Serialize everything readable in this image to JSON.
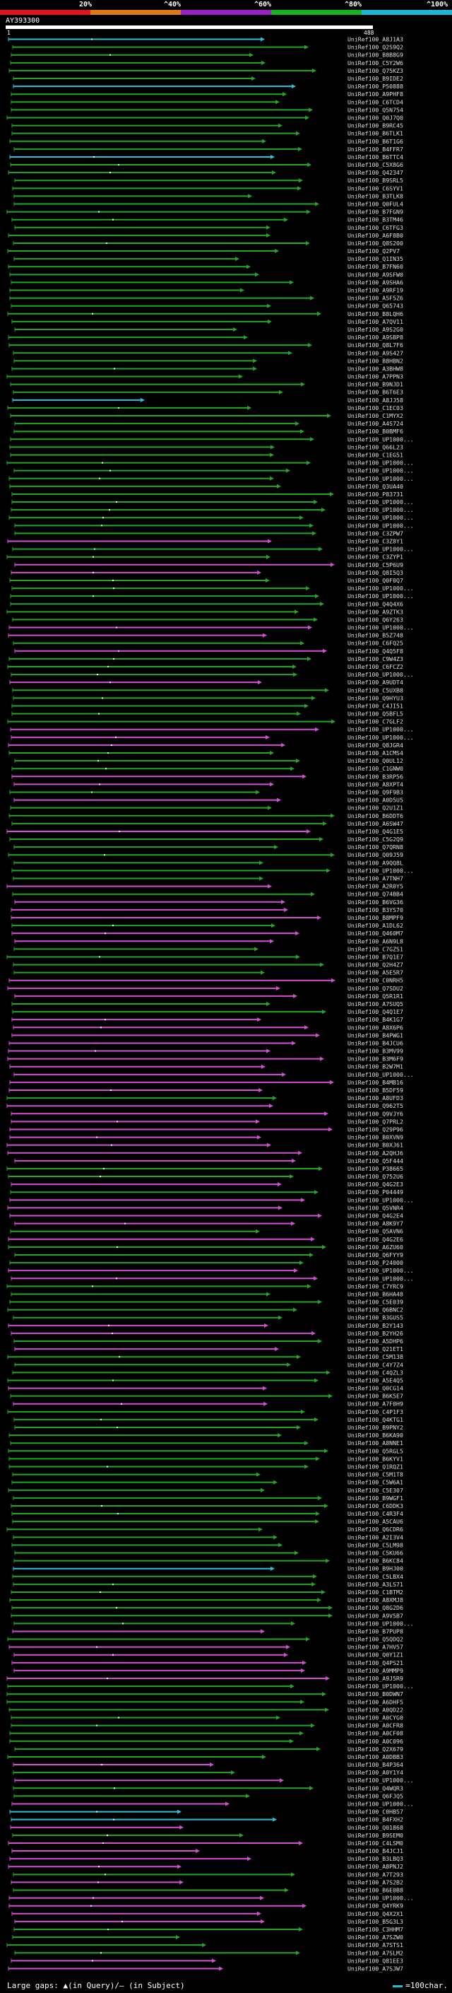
{
  "scale": {
    "labels": [
      "20%",
      "^40%",
      "^60%",
      "^80%",
      "^100%"
    ],
    "colors": [
      "#e0141a",
      "#e07a14",
      "#9b21c4",
      "#17b41d",
      "#1ab7d9"
    ]
  },
  "query": {
    "name": "AY393300",
    "start": "1",
    "end": "488"
  },
  "legend": {
    "text": "Large gaps: ▲(in Query)/– (in Subject)",
    "scale_text": "=100char."
  },
  "hits": [
    {
      "id": "UniRef100_A8J1A3",
      "color": "#2cc0d8"
    },
    {
      "id": "UniRef100_Q2S9Q2",
      "color": "#25a525"
    },
    {
      "id": "UniRef100_B8B8G9",
      "color": "#25a525"
    },
    {
      "id": "UniRef100_C5Y2W6",
      "color": "#25a525"
    },
    {
      "id": "UniRef100_Q75KZ3",
      "color": "#25a525"
    },
    {
      "id": "UniRef100_B9IDE2",
      "color": "#25a525"
    },
    {
      "id": "UniRef100_P50888",
      "color": "#2cc0d8"
    },
    {
      "id": "UniRef100_A9PHF8",
      "color": "#25a525"
    },
    {
      "id": "UniRef100_C6TCD4",
      "color": "#25a525"
    },
    {
      "id": "UniRef100_Q5N754",
      "color": "#25a525"
    },
    {
      "id": "UniRef100_Q0J7Q0",
      "color": "#25a525"
    },
    {
      "id": "UniRef100_B9RC45",
      "color": "#25a525"
    },
    {
      "id": "UniRef100_B6TLK1",
      "color": "#25a525"
    },
    {
      "id": "UniRef100_B6T1G6",
      "color": "#25a525"
    },
    {
      "id": "UniRef100_B4FFR7",
      "color": "#25a525"
    },
    {
      "id": "UniRef100_B6TTC4",
      "color": "#2cc0d8"
    },
    {
      "id": "UniRef100_C5X8G6",
      "color": "#25a525"
    },
    {
      "id": "UniRef100_Q42347",
      "color": "#25a525"
    },
    {
      "id": "UniRef100_B9SRL5",
      "color": "#25a525"
    },
    {
      "id": "UniRef100_C6SYV1",
      "color": "#25a525"
    },
    {
      "id": "UniRef100_B3TLK8",
      "color": "#25a525"
    },
    {
      "id": "UniRef100_Q0FUL4",
      "color": "#25a525"
    },
    {
      "id": "UniRef100_B7FGN9",
      "color": "#25a525"
    },
    {
      "id": "UniRef100_B3TM46",
      "color": "#25a525"
    },
    {
      "id": "UniRef100_C6TFG3",
      "color": "#25a525"
    },
    {
      "id": "UniRef100_A6F8B0",
      "color": "#25a525"
    },
    {
      "id": "UniRef100_Q8S200",
      "color": "#25a525"
    },
    {
      "id": "UniRef100_Q2PV7",
      "color": "#25a525"
    },
    {
      "id": "UniRef100_Q1IN35",
      "color": "#25a525"
    },
    {
      "id": "UniRef100_B7FN60",
      "color": "#25a525"
    },
    {
      "id": "UniRef100_A9SFW0",
      "color": "#25a525"
    },
    {
      "id": "UniRef100_A9SHA6",
      "color": "#25a525"
    },
    {
      "id": "UniRef100_A9RF19",
      "color": "#25a525"
    },
    {
      "id": "UniRef100_A5F5Z6",
      "color": "#25a525"
    },
    {
      "id": "UniRef100_Q65743",
      "color": "#25a525"
    },
    {
      "id": "UniRef100_B8LQH6",
      "color": "#25a525"
    },
    {
      "id": "UniRef100_A7QV11",
      "color": "#25a525"
    },
    {
      "id": "UniRef100_A9S2G0",
      "color": "#25a525"
    },
    {
      "id": "UniRef100_A9SBP8",
      "color": "#25a525"
    },
    {
      "id": "UniRef100_Q8L7F6",
      "color": "#25a525"
    },
    {
      "id": "UniRef100_A9S427",
      "color": "#25a525"
    },
    {
      "id": "UniRef100_B8HBN2",
      "color": "#25a525"
    },
    {
      "id": "UniRef100_A3BHW8",
      "color": "#25a525"
    },
    {
      "id": "UniRef100_A7PPN3",
      "color": "#25a525"
    },
    {
      "id": "UniRef100_B9NJD1",
      "color": "#25a525"
    },
    {
      "id": "UniRef100_B6T6E3",
      "color": "#25a525"
    },
    {
      "id": "UniRef100_A8JJ58",
      "color": "#2cc0d8"
    },
    {
      "id": "UniRef100_C1EC03",
      "color": "#25a525"
    },
    {
      "id": "UniRef100_C1MYX2",
      "color": "#25a525"
    },
    {
      "id": "UniRef100_A4S724",
      "color": "#25a525"
    },
    {
      "id": "UniRef100_B0BMF6",
      "color": "#25a525"
    },
    {
      "id": "UniRef100_UP1000...",
      "color": "#25a525"
    },
    {
      "id": "UniRef100_Q66L23",
      "color": "#25a525"
    },
    {
      "id": "UniRef100_C1EG51",
      "color": "#25a525"
    },
    {
      "id": "UniRef100_UP1000...",
      "color": "#25a525"
    },
    {
      "id": "UniRef100_UP1000...",
      "color": "#25a525"
    },
    {
      "id": "UniRef100_UP1000...",
      "color": "#25a525"
    },
    {
      "id": "UniRef100_Q3UA40",
      "color": "#25a525"
    },
    {
      "id": "UniRef100_P83731",
      "color": "#25a525"
    },
    {
      "id": "UniRef100_UP1000...",
      "color": "#25a525"
    },
    {
      "id": "UniRef100_UP1000...",
      "color": "#25a525"
    },
    {
      "id": "UniRef100_UP1000...",
      "color": "#25a525"
    },
    {
      "id": "UniRef100_UP1000...",
      "color": "#25a525"
    },
    {
      "id": "UniRef100_C3ZPW7",
      "color": "#25a525"
    },
    {
      "id": "UniRef100_C3Z8Y1",
      "color": "#d24fd2"
    },
    {
      "id": "UniRef100_UP1000...",
      "color": "#25a525"
    },
    {
      "id": "UniRef100_C3ZYP1",
      "color": "#25a525"
    },
    {
      "id": "UniRef100_C5P6U9",
      "color": "#d24fd2"
    },
    {
      "id": "UniRef100_Q8I5Q3",
      "color": "#d24fd2"
    },
    {
      "id": "UniRef100_Q0F0Q7",
      "color": "#25a525"
    },
    {
      "id": "UniRef100_UP1000...",
      "color": "#25a525"
    },
    {
      "id": "UniRef100_UP1000...",
      "color": "#25a525"
    },
    {
      "id": "UniRef100_Q4Q4X6",
      "color": "#25a525"
    },
    {
      "id": "UniRef100_A9ZTK3",
      "color": "#25a525"
    },
    {
      "id": "UniRef100_Q6Y263",
      "color": "#25a525"
    },
    {
      "id": "UniRef100_UP1000...",
      "color": "#d24fd2"
    },
    {
      "id": "UniRef100_B5Z748",
      "color": "#d24fd2"
    },
    {
      "id": "UniRef100_C6FQ25",
      "color": "#25a525"
    },
    {
      "id": "UniRef100_Q4Q5F8",
      "color": "#d24fd2"
    },
    {
      "id": "UniRef100_C9W4Z3",
      "color": "#25a525"
    },
    {
      "id": "UniRef100_C6FCZ2",
      "color": "#25a525"
    },
    {
      "id": "UniRef100_UP1000...",
      "color": "#25a525"
    },
    {
      "id": "UniRef100_A9UDT4",
      "color": "#d24fd2"
    },
    {
      "id": "UniRef100_C5UXB8",
      "color": "#25a525"
    },
    {
      "id": "UniRef100_Q9HYU3",
      "color": "#25a525"
    },
    {
      "id": "UniRef100_C4JI51",
      "color": "#25a525"
    },
    {
      "id": "UniRef100_Q5BFL5",
      "color": "#25a525"
    },
    {
      "id": "UniRef100_C7GLF2",
      "color": "#25a525"
    },
    {
      "id": "UniRef100_UP1000...",
      "color": "#d24fd2"
    },
    {
      "id": "UniRef100_UP1000...",
      "color": "#d24fd2"
    },
    {
      "id": "UniRef100_Q8JGR4",
      "color": "#d24fd2"
    },
    {
      "id": "UniRef100_A1CMS4",
      "color": "#25a525"
    },
    {
      "id": "UniRef100_Q0UL12",
      "color": "#25a525"
    },
    {
      "id": "UniRef100_C1GNW0",
      "color": "#25a525"
    },
    {
      "id": "UniRef100_B3RP56",
      "color": "#d24fd2"
    },
    {
      "id": "UniRef100_A8XPT4",
      "color": "#d24fd2"
    },
    {
      "id": "UniRef100_Q9F9B3",
      "color": "#25a525"
    },
    {
      "id": "UniRef100_A0D5U5",
      "color": "#d24fd2"
    },
    {
      "id": "UniRef100_Q2U1Z1",
      "color": "#25a525"
    },
    {
      "id": "UniRef100_B6DDT6",
      "color": "#25a525"
    },
    {
      "id": "UniRef100_A6SW47",
      "color": "#25a525"
    },
    {
      "id": "UniRef100_Q4G1E5",
      "color": "#d24fd2"
    },
    {
      "id": "UniRef100_C5G2Q9",
      "color": "#25a525"
    },
    {
      "id": "UniRef100_Q7QRN8",
      "color": "#25a525"
    },
    {
      "id": "UniRef100_Q09J59",
      "color": "#25a525"
    },
    {
      "id": "UniRef100_A9QQ8L",
      "color": "#25a525"
    },
    {
      "id": "UniRef100_UP1000...",
      "color": "#25a525"
    },
    {
      "id": "UniRef100_A7TNH7",
      "color": "#25a525"
    },
    {
      "id": "UniRef100_A2R0Y5",
      "color": "#d24fd2"
    },
    {
      "id": "UniRef100_Q74BB4",
      "color": "#25a525"
    },
    {
      "id": "UniRef100_B6VG36",
      "color": "#d24fd2"
    },
    {
      "id": "UniRef100_B3YS70",
      "color": "#d24fd2"
    },
    {
      "id": "UniRef100_B8MPF9",
      "color": "#d24fd2"
    },
    {
      "id": "UniRef100_A1DL62",
      "color": "#25a525"
    },
    {
      "id": "UniRef100_Q460M7",
      "color": "#d24fd2"
    },
    {
      "id": "UniRef100_A6N9L8",
      "color": "#d24fd2"
    },
    {
      "id": "UniRef100_C7GZS1",
      "color": "#25a525"
    },
    {
      "id": "UniRef100_B7Q1E7",
      "color": "#25a525"
    },
    {
      "id": "UniRef100_Q2H4Z7",
      "color": "#25a525"
    },
    {
      "id": "UniRef100_A5E5R7",
      "color": "#25a525"
    },
    {
      "id": "UniRef100_C0NRH5",
      "color": "#d24fd2"
    },
    {
      "id": "UniRef100_Q7SDU2",
      "color": "#d24fd2"
    },
    {
      "id": "UniRef100_Q5R1R1",
      "color": "#d24fd2"
    },
    {
      "id": "UniRef100_A7SUQ5",
      "color": "#25a525"
    },
    {
      "id": "UniRef100_Q4Q1E7",
      "color": "#25a525"
    },
    {
      "id": "UniRef100_B4K1G7",
      "color": "#d24fd2"
    },
    {
      "id": "UniRef100_A8X6P6",
      "color": "#d24fd2"
    },
    {
      "id": "UniRef100_B4PWG1",
      "color": "#d24fd2"
    },
    {
      "id": "UniRef100_B4JCU6",
      "color": "#d24fd2"
    },
    {
      "id": "UniRef100_B3MV99",
      "color": "#d24fd2"
    },
    {
      "id": "UniRef100_B3M6F9",
      "color": "#d24fd2"
    },
    {
      "id": "UniRef100_B2W7M1",
      "color": "#d24fd2"
    },
    {
      "id": "UniRef100_UP1000...",
      "color": "#d24fd2"
    },
    {
      "id": "UniRef100_B4MB16",
      "color": "#d24fd2"
    },
    {
      "id": "UniRef100_B5DF59",
      "color": "#d24fd2"
    },
    {
      "id": "UniRef100_A8UFD3",
      "color": "#25a525"
    },
    {
      "id": "UniRef100_Q962T5",
      "color": "#d24fd2"
    },
    {
      "id": "UniRef100_Q9VJY6",
      "color": "#d24fd2"
    },
    {
      "id": "UniRef100_Q7PRL2",
      "color": "#d24fd2"
    },
    {
      "id": "UniRef100_Q29P96",
      "color": "#d24fd2"
    },
    {
      "id": "UniRef100_B0XVN9",
      "color": "#d24fd2"
    },
    {
      "id": "UniRef100_B0XJ61",
      "color": "#d24fd2"
    },
    {
      "id": "UniRef100_A2QHJ6",
      "color": "#d24fd2"
    },
    {
      "id": "UniRef100_Q5F444",
      "color": "#d24fd2"
    },
    {
      "id": "UniRef100_P38665",
      "color": "#25a525"
    },
    {
      "id": "UniRef100_Q752U6",
      "color": "#25a525"
    },
    {
      "id": "UniRef100_Q4G2E3",
      "color": "#d24fd2"
    },
    {
      "id": "UniRef100_P04449",
      "color": "#25a525"
    },
    {
      "id": "UniRef100_UP1000...",
      "color": "#d24fd2"
    },
    {
      "id": "UniRef100_Q5VNR4",
      "color": "#d24fd2"
    },
    {
      "id": "UniRef100_Q4G2E4",
      "color": "#d24fd2"
    },
    {
      "id": "UniRef100_A8K9Y7",
      "color": "#d24fd2"
    },
    {
      "id": "UniRef100_Q5AVN6",
      "color": "#25a525"
    },
    {
      "id": "UniRef100_Q4G2E6",
      "color": "#d24fd2"
    },
    {
      "id": "UniRef100_A6ZU60",
      "color": "#25a525"
    },
    {
      "id": "UniRef100_Q6FYY9",
      "color": "#25a525"
    },
    {
      "id": "UniRef100_P24000",
      "color": "#25a525"
    },
    {
      "id": "UniRef100_UP1000...",
      "color": "#d24fd2"
    },
    {
      "id": "UniRef100_UP1000...",
      "color": "#d24fd2"
    },
    {
      "id": "UniRef100_C7YRC9",
      "color": "#25a525"
    },
    {
      "id": "UniRef100_B6HA48",
      "color": "#25a525"
    },
    {
      "id": "UniRef100_C5E039",
      "color": "#25a525"
    },
    {
      "id": "UniRef100_Q6BNC2",
      "color": "#25a525"
    },
    {
      "id": "UniRef100_B3GUS5",
      "color": "#25a525"
    },
    {
      "id": "UniRef100_B2Y143",
      "color": "#d24fd2"
    },
    {
      "id": "UniRef100_B2YH26",
      "color": "#d24fd2"
    },
    {
      "id": "UniRef100_A5DHP6",
      "color": "#25a525"
    },
    {
      "id": "UniRef100_Q21ET1",
      "color": "#d24fd2"
    },
    {
      "id": "UniRef100_C5M138",
      "color": "#25a525"
    },
    {
      "id": "UniRef100_C4Y7Z4",
      "color": "#25a525"
    },
    {
      "id": "UniRef100_C4QZL3",
      "color": "#25a525"
    },
    {
      "id": "UniRef100_A5E4Q5",
      "color": "#25a525"
    },
    {
      "id": "UniRef100_Q0CG14",
      "color": "#d24fd2"
    },
    {
      "id": "UniRef100_B6K5E7",
      "color": "#25a525"
    },
    {
      "id": "UniRef100_A7F0H9",
      "color": "#d24fd2"
    },
    {
      "id": "UniRef100_C4P1F3",
      "color": "#25a525"
    },
    {
      "id": "UniRef100_Q4KTG1",
      "color": "#25a525"
    },
    {
      "id": "UniRef100_B9PNY2",
      "color": "#25a525"
    },
    {
      "id": "UniRef100_B6KA90",
      "color": "#25a525"
    },
    {
      "id": "UniRef100_A8NNE1",
      "color": "#25a525"
    },
    {
      "id": "UniRef100_Q5RGL5",
      "color": "#25a525"
    },
    {
      "id": "UniRef100_B6KYV1",
      "color": "#25a525"
    },
    {
      "id": "UniRef100_Q1RQZ1",
      "color": "#25a525"
    },
    {
      "id": "UniRef100_C5M1T8",
      "color": "#25a525"
    },
    {
      "id": "UniRef100_C5W6A1",
      "color": "#25a525"
    },
    {
      "id": "UniRef100_C5E307",
      "color": "#25a525"
    },
    {
      "id": "UniRef100_B9WGF1",
      "color": "#25a525"
    },
    {
      "id": "UniRef100_C6DDK3",
      "color": "#25a525"
    },
    {
      "id": "UniRef100_C4R3F4",
      "color": "#25a525"
    },
    {
      "id": "UniRef100_A5CAU6",
      "color": "#25a525"
    },
    {
      "id": "UniRef100_Q6CDR6",
      "color": "#25a525"
    },
    {
      "id": "UniRef100_A2I3V4",
      "color": "#25a525"
    },
    {
      "id": "UniRef100_C5LM98",
      "color": "#25a525"
    },
    {
      "id": "UniRef100_C5KU66",
      "color": "#25a525"
    },
    {
      "id": "UniRef100_B6KC84",
      "color": "#25a525"
    },
    {
      "id": "UniRef100_B9HJ00",
      "color": "#2cc0d8"
    },
    {
      "id": "UniRef100_C5LBX4",
      "color": "#25a525"
    },
    {
      "id": "UniRef100_A3LS71",
      "color": "#25a525"
    },
    {
      "id": "UniRef100_C1BTM2",
      "color": "#25a525"
    },
    {
      "id": "UniRef100_A8XMJ8",
      "color": "#25a525"
    },
    {
      "id": "UniRef100_Q8G2D6",
      "color": "#25a525"
    },
    {
      "id": "UniRef100_A9V5B7",
      "color": "#25a525"
    },
    {
      "id": "UniRef100_UP1000...",
      "color": "#25a525"
    },
    {
      "id": "UniRef100_B7PUP8",
      "color": "#d24fd2"
    },
    {
      "id": "UniRef100_Q5QDQ2",
      "color": "#25a525"
    },
    {
      "id": "UniRef100_A7HV57",
      "color": "#d24fd2"
    },
    {
      "id": "UniRef100_Q0Y1Z1",
      "color": "#d24fd2"
    },
    {
      "id": "UniRef100_Q4PS21",
      "color": "#d24fd2"
    },
    {
      "id": "UniRef100_A9MMP9",
      "color": "#d24fd2"
    },
    {
      "id": "UniRef100_A9J5R9",
      "color": "#d24fd2"
    },
    {
      "id": "UniRef100_UP1000...",
      "color": "#25a525"
    },
    {
      "id": "UniRef100_B0DWN7",
      "color": "#25a525"
    },
    {
      "id": "UniRef100_A6DHF5",
      "color": "#25a525"
    },
    {
      "id": "UniRef100_A0QD22",
      "color": "#25a525"
    },
    {
      "id": "UniRef100_A0CYG0",
      "color": "#25a525"
    },
    {
      "id": "UniRef100_A0CFR8",
      "color": "#25a525"
    },
    {
      "id": "UniRef100_A0CF08",
      "color": "#25a525"
    },
    {
      "id": "UniRef100_A0C096",
      "color": "#25a525"
    },
    {
      "id": "UniRef100_Q2X679",
      "color": "#25a525"
    },
    {
      "id": "UniRef100_A0DBB3",
      "color": "#25a525"
    },
    {
      "id": "UniRef100_B4P364",
      "color": "#d24fd2"
    },
    {
      "id": "UniRef100_A0Y1Y4",
      "color": "#25a525"
    },
    {
      "id": "UniRef100_UP1000...",
      "color": "#d24fd2"
    },
    {
      "id": "UniRef100_Q4WQR3",
      "color": "#25a525"
    },
    {
      "id": "UniRef100_Q6FJQ5",
      "color": "#25a525"
    },
    {
      "id": "UniRef100_UP1000...",
      "color": "#d24fd2"
    },
    {
      "id": "UniRef100_C0HB57",
      "color": "#2cc0d8"
    },
    {
      "id": "UniRef100_B4FXH2",
      "color": "#2cc0d8"
    },
    {
      "id": "UniRef100_Q01868",
      "color": "#d24fd2"
    },
    {
      "id": "UniRef100_B9SEM0",
      "color": "#25a525"
    },
    {
      "id": "UniRef100_C4LSM0",
      "color": "#d24fd2"
    },
    {
      "id": "UniRef100_B4JCJ1",
      "color": "#d24fd2"
    },
    {
      "id": "UniRef100_B3LBQ3",
      "color": "#d24fd2"
    },
    {
      "id": "UniRef100_A8PNJ2",
      "color": "#d24fd2"
    },
    {
      "id": "UniRef100_A7T293",
      "color": "#25a525"
    },
    {
      "id": "UniRef100_A7S2B2",
      "color": "#d24fd2"
    },
    {
      "id": "UniRef100_B6E0B8",
      "color": "#25a525"
    },
    {
      "id": "UniRef100_UP1000...",
      "color": "#d24fd2"
    },
    {
      "id": "UniRef100_Q4YRK9",
      "color": "#d24fd2"
    },
    {
      "id": "UniRef100_Q4X2X1",
      "color": "#d24fd2"
    },
    {
      "id": "UniRef100_B5G3L3",
      "color": "#d24fd2"
    },
    {
      "id": "UniRef100_C3HHM7",
      "color": "#25a525"
    },
    {
      "id": "UniRef100_A7SZW0",
      "color": "#25a525"
    },
    {
      "id": "UniRef100_A7STS1",
      "color": "#25a525"
    },
    {
      "id": "UniRef100_A7SLM2",
      "color": "#25a525"
    },
    {
      "id": "UniRef100_Q81EE3",
      "color": "#d24fd2"
    },
    {
      "id": "UniRef100_A7SJW7",
      "color": "#d24fd2"
    }
  ]
}
